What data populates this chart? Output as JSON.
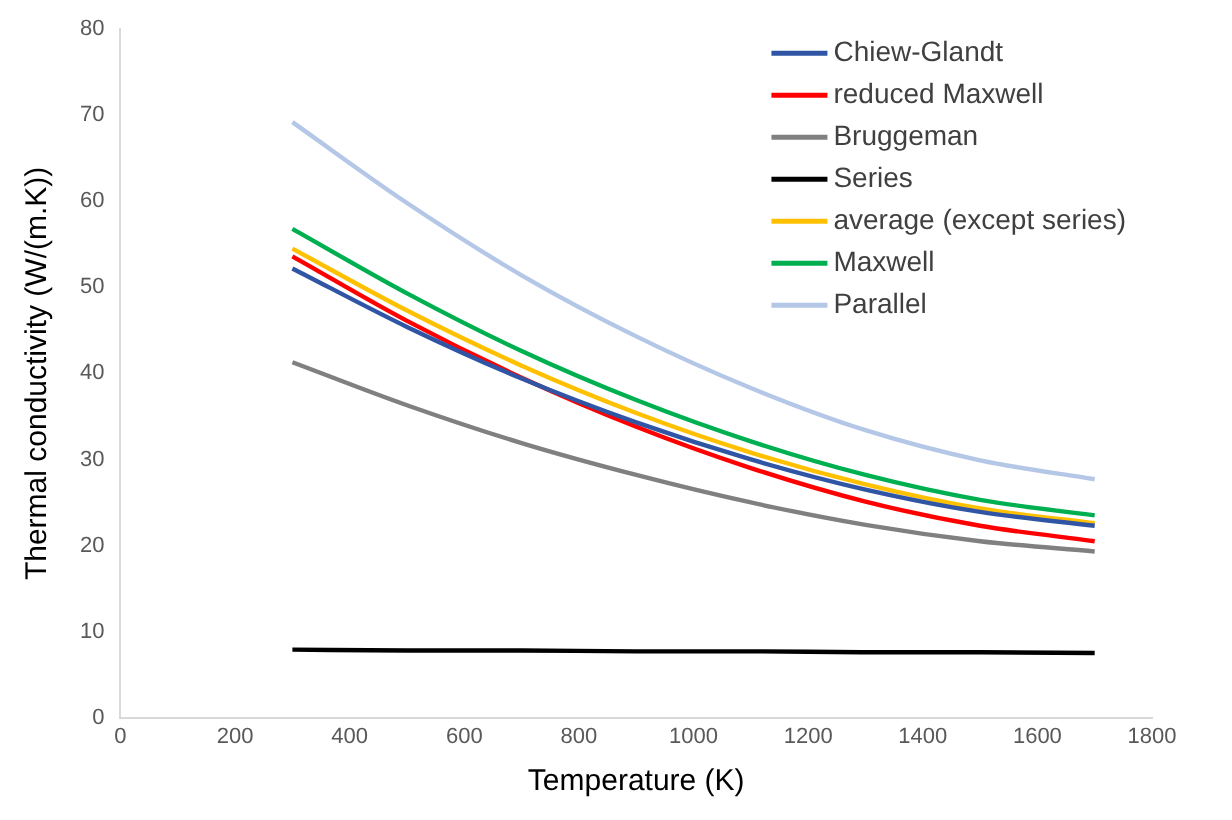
{
  "chart_data": {
    "type": "line",
    "xlabel": "Temperature (K)",
    "ylabel": "Thermal conductivity (W/(m.K))",
    "x": [
      300,
      500,
      700,
      900,
      1100,
      1300,
      1500,
      1700
    ],
    "xlim": [
      0,
      1800
    ],
    "xticks": [
      0,
      200,
      400,
      600,
      800,
      1000,
      1200,
      1400,
      1600,
      1800
    ],
    "ylim": [
      0,
      80
    ],
    "yticks": [
      0,
      10,
      20,
      30,
      40,
      50,
      60,
      70,
      80
    ],
    "grid": false,
    "legend": "top right",
    "marker": "none",
    "line_style": "solid",
    "series": [
      {
        "name": "Chiew-Glandt",
        "color": "#2f55a4",
        "values": [
          52.2,
          45.4,
          39.4,
          34.3,
          30.0,
          26.5,
          23.9,
          22.3
        ]
      },
      {
        "name": "reduced Maxwell",
        "color": "#ff0000",
        "values": [
          53.6,
          46.1,
          39.5,
          33.8,
          29.0,
          25.1,
          22.3,
          20.5
        ]
      },
      {
        "name": "Bruggeman",
        "color": "#808080",
        "values": [
          41.3,
          36.3,
          31.9,
          28.2,
          25.0,
          22.4,
          20.5,
          19.3
        ]
      },
      {
        "name": "Series",
        "color": "#000000",
        "values": [
          7.9,
          7.8,
          7.8,
          7.7,
          7.7,
          7.6,
          7.6,
          7.5
        ]
      },
      {
        "name": "average (except series)",
        "color": "#ffc000",
        "values": [
          54.5,
          47.3,
          40.9,
          35.4,
          30.8,
          27.1,
          24.3,
          22.6
        ]
      },
      {
        "name": "Maxwell",
        "color": "#00b050",
        "values": [
          56.8,
          49.3,
          42.6,
          36.9,
          32.1,
          28.2,
          25.3,
          23.5
        ]
      },
      {
        "name": "Parallel",
        "color": "#b4c7e7",
        "values": [
          69.2,
          59.8,
          51.4,
          44.3,
          38.3,
          33.4,
          29.9,
          27.7
        ]
      }
    ]
  }
}
